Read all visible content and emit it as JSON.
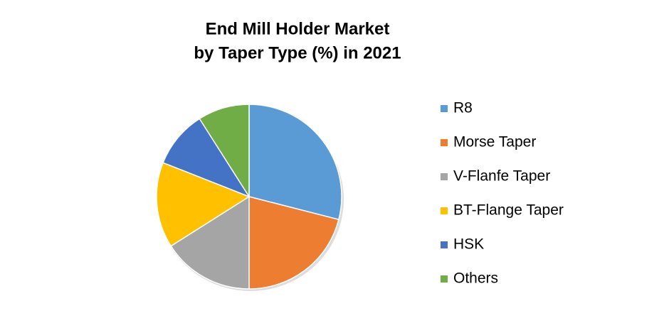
{
  "chart_data": {
    "type": "pie",
    "title": [
      "End Mill Holder Market",
      "by Taper Type (%) in 2021"
    ],
    "categories": [
      "R8",
      "Morse Taper",
      "V-Flanfe Taper",
      "BT-Flange Taper",
      "HSK",
      "Others"
    ],
    "values": [
      29,
      21,
      16,
      15,
      10,
      9
    ],
    "colors": [
      "#5b9bd5",
      "#ed7d31",
      "#a5a5a5",
      "#ffc000",
      "#4472c4",
      "#70ad47"
    ],
    "legend": "right"
  }
}
